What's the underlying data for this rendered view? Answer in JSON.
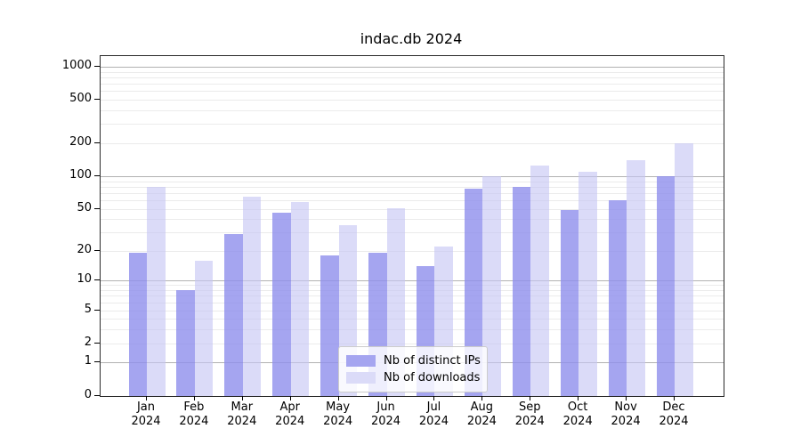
{
  "chart_data": {
    "type": "bar",
    "title": "indac.db 2024",
    "categories": [
      "Jan 2024",
      "Feb 2024",
      "Mar 2024",
      "Apr 2024",
      "May 2024",
      "Jun 2024",
      "Jul 2024",
      "Aug 2024",
      "Sep 2024",
      "Oct 2024",
      "Nov 2024",
      "Dec 2024"
    ],
    "xtick_labels": [
      [
        "Jan",
        "2024"
      ],
      [
        "Feb",
        "2024"
      ],
      [
        "Mar",
        "2024"
      ],
      [
        "Apr",
        "2024"
      ],
      [
        "May",
        "2024"
      ],
      [
        "Jun",
        "2024"
      ],
      [
        "Jul",
        "2024"
      ],
      [
        "Aug",
        "2024"
      ],
      [
        "Sep",
        "2024"
      ],
      [
        "Oct",
        "2024"
      ],
      [
        "Nov",
        "2024"
      ],
      [
        "Dec",
        "2024"
      ]
    ],
    "series": [
      {
        "name": "Nb of distinct IPs",
        "color": "#a5a5f0",
        "values": [
          19,
          8,
          29,
          46,
          18,
          19,
          14,
          77,
          80,
          49,
          60,
          100
        ]
      },
      {
        "name": "Nb of downloads",
        "color": "#dbdbf8",
        "values": [
          80,
          16,
          65,
          58,
          35,
          51,
          22,
          100,
          125,
          110,
          140,
          200
        ]
      }
    ],
    "yscale": "symlog",
    "yticks": [
      0,
      1,
      2,
      5,
      10,
      20,
      50,
      100,
      200,
      500,
      1000
    ],
    "ytick_labels": [
      "0",
      "1",
      "2",
      "5",
      "10",
      "20",
      "50",
      "100",
      "200",
      "500",
      "1000"
    ],
    "ylim": [
      0,
      1300
    ],
    "xlabel": "",
    "ylabel": "",
    "grid": "on",
    "legend_position": "lower-center-inside",
    "grid_major_color": "#b2b2b2",
    "grid_minor_color": "#ebebeb"
  }
}
